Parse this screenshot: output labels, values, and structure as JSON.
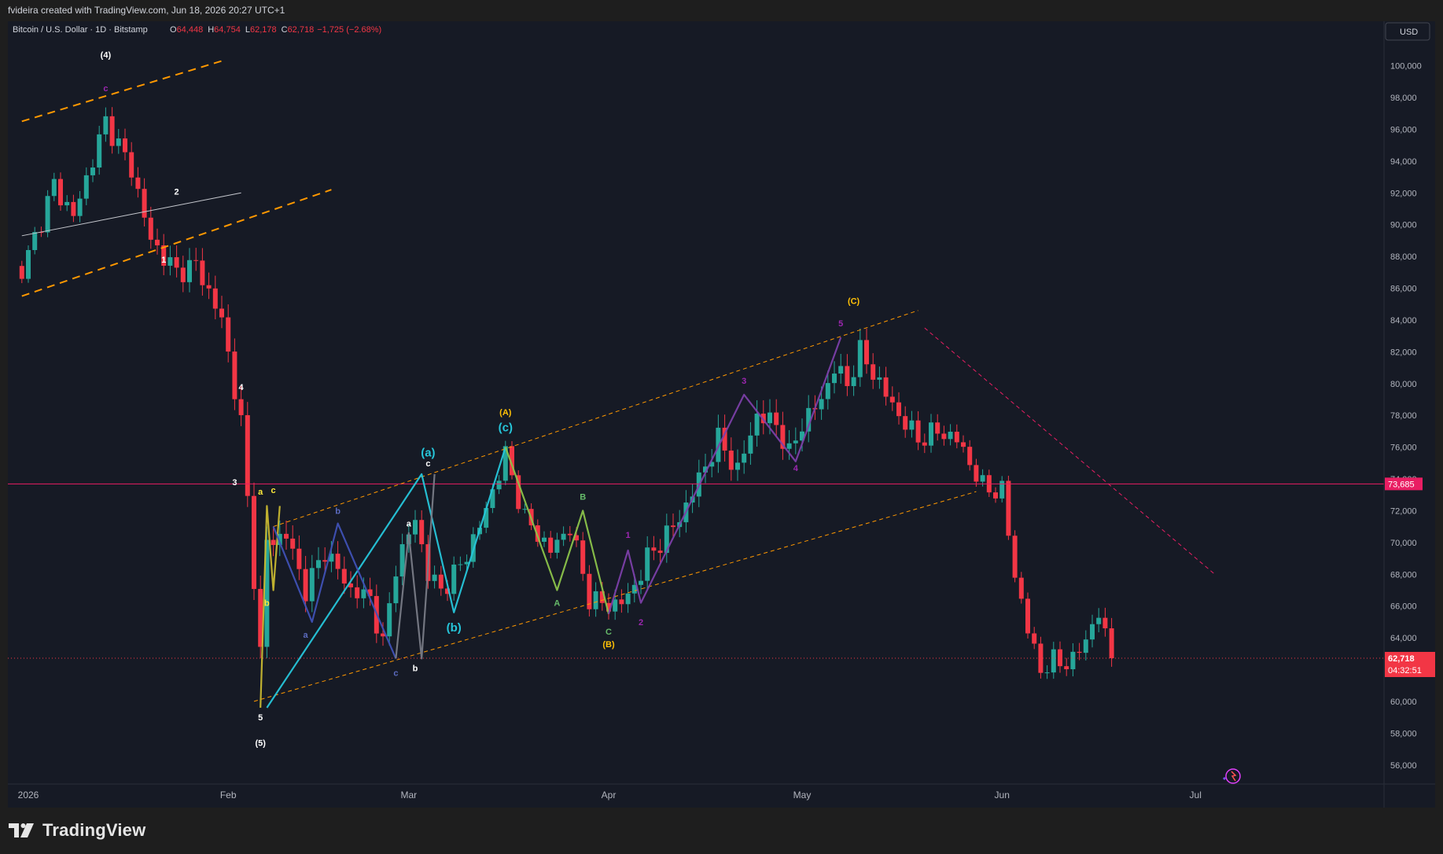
{
  "banner": "fvideira created with TradingView.com, Jun 18, 2026 20:27 UTC+1",
  "brand": "TradingView",
  "legend": {
    "symbol": "Bitcoin / U.S. Dollar · 1D · Bitstamp",
    "o_label": "O",
    "o": "64,448",
    "h_label": "H",
    "h": "64,754",
    "l_label": "L",
    "l": "62,178",
    "c_label": "C",
    "c": "62,718",
    "change": "−1,725 (−2.68%)"
  },
  "currency": "USD",
  "price_tag": {
    "value": "62,718",
    "countdown": "04:32:51"
  },
  "level_tag": "73,685",
  "colors": {
    "up": "#26a69a",
    "down": "#f23645",
    "bg": "#161a25",
    "level": "#e91e63",
    "channel": "#ff9800"
  },
  "chart_data": {
    "type": "candlestick",
    "title": "",
    "x_labels": [
      "2026",
      "Feb",
      "Mar",
      "Apr",
      "May",
      "Jun",
      "Jul"
    ],
    "x_label_dates": [
      "2026-01-01",
      "2026-02-01",
      "2026-03-01",
      "2026-04-01",
      "2026-05-01",
      "2026-06-01",
      "2026-07-01"
    ],
    "y_ticks": [
      56000,
      58000,
      60000,
      62000,
      64000,
      66000,
      68000,
      70000,
      72000,
      74000,
      76000,
      78000,
      80000,
      82000,
      84000,
      86000,
      88000,
      90000,
      92000,
      94000,
      96000,
      98000,
      100000
    ],
    "y_range": [
      54800,
      102800
    ],
    "horizontal_level": 73685,
    "last_price": 62718,
    "waypoints": [
      [
        "2025-12-31",
        87000
      ],
      [
        "2026-01-05",
        92500
      ],
      [
        "2026-01-08",
        90500
      ],
      [
        "2026-01-13",
        96500
      ],
      [
        "2026-01-17",
        93500
      ],
      [
        "2026-01-20",
        89000
      ],
      [
        "2026-01-24",
        87000
      ],
      [
        "2026-01-27",
        87500
      ],
      [
        "2026-01-31",
        84000
      ],
      [
        "2026-02-03",
        77500
      ],
      [
        "2026-02-06",
        63000
      ],
      [
        "2026-02-07",
        70000
      ],
      [
        "2026-02-10",
        70500
      ],
      [
        "2026-02-13",
        67000
      ],
      [
        "2026-02-16",
        69500
      ],
      [
        "2026-02-20",
        67000
      ],
      [
        "2026-02-23",
        66500
      ],
      [
        "2026-02-25",
        63500
      ],
      [
        "2026-02-27",
        68500
      ],
      [
        "2026-03-02",
        71500
      ],
      [
        "2026-03-04",
        68000
      ],
      [
        "2026-03-06",
        67000
      ],
      [
        "2026-03-09",
        68500
      ],
      [
        "2026-03-12",
        71000
      ],
      [
        "2026-03-16",
        75500
      ],
      [
        "2026-03-19",
        71500
      ],
      [
        "2026-03-23",
        69500
      ],
      [
        "2026-03-26",
        71000
      ],
      [
        "2026-03-29",
        66500
      ],
      [
        "2026-04-01",
        66000
      ],
      [
        "2026-04-04",
        66500
      ],
      [
        "2026-04-07",
        69000
      ],
      [
        "2026-04-12",
        71500
      ],
      [
        "2026-04-15",
        74000
      ],
      [
        "2026-04-18",
        76500
      ],
      [
        "2026-04-21",
        74500
      ],
      [
        "2026-04-24",
        78000
      ],
      [
        "2026-04-27",
        77500
      ],
      [
        "2026-04-29",
        75500
      ],
      [
        "2026-05-01",
        77500
      ],
      [
        "2026-05-04",
        79000
      ],
      [
        "2026-05-06",
        81000
      ],
      [
        "2026-05-08",
        80000
      ],
      [
        "2026-05-10",
        82000
      ],
      [
        "2026-05-13",
        80000
      ],
      [
        "2026-05-16",
        78000
      ],
      [
        "2026-05-19",
        76500
      ],
      [
        "2026-05-22",
        77000
      ],
      [
        "2026-05-25",
        76500
      ],
      [
        "2026-05-27",
        75000
      ],
      [
        "2026-05-29",
        73500
      ],
      [
        "2026-06-01",
        73200
      ],
      [
        "2026-06-03",
        68000
      ],
      [
        "2026-06-05",
        64500
      ],
      [
        "2026-06-07",
        62000
      ],
      [
        "2026-06-09",
        62500
      ],
      [
        "2026-06-12",
        62500
      ],
      [
        "2026-06-14",
        64000
      ],
      [
        "2026-06-16",
        65500
      ],
      [
        "2026-06-18",
        62718
      ]
    ],
    "trendlines": [
      {
        "style": "dash-orange-thick",
        "from": [
          "2025-12-31",
          96500
        ],
        "to": [
          "2026-01-31",
          100300
        ]
      },
      {
        "style": "dash-orange-thick",
        "from": [
          "2025-12-31",
          85500
        ],
        "to": [
          "2026-02-17",
          92200
        ]
      },
      {
        "style": "solid-white",
        "from": [
          "2025-12-31",
          89300
        ],
        "to": [
          "2026-02-03",
          92000
        ]
      },
      {
        "style": "dash-orange-thin",
        "from": [
          "2026-02-05",
          60000
        ],
        "to": [
          "2026-05-28",
          73200
        ]
      },
      {
        "style": "dash-orange-thin",
        "from": [
          "2026-02-08",
          71000
        ],
        "to": [
          "2026-05-19",
          84600
        ]
      },
      {
        "style": "dash-pink",
        "from": [
          "2026-05-20",
          83500
        ],
        "to": [
          "2026-07-04",
          68000
        ]
      }
    ],
    "wave_paths": [
      {
        "color": "#c8b830",
        "points": [
          [
            "2026-02-06",
            59600
          ],
          [
            "2026-02-07",
            72300
          ],
          [
            "2026-02-08",
            67000
          ],
          [
            "2026-02-09",
            72300
          ]
        ]
      },
      {
        "color": "#26c6da",
        "points": [
          [
            "2026-02-07",
            59600
          ],
          [
            "2026-03-03",
            74300
          ],
          [
            "2026-03-08",
            65600
          ],
          [
            "2026-03-16",
            76000
          ]
        ]
      },
      {
        "color": "#3f51b5",
        "points": [
          [
            "2026-02-08",
            71000
          ],
          [
            "2026-02-14",
            65000
          ],
          [
            "2026-02-18",
            71200
          ],
          [
            "2026-02-27",
            62700
          ]
        ]
      },
      {
        "color": "#787b86",
        "points": [
          [
            "2026-02-27",
            62700
          ],
          [
            "2026-03-01",
            70600
          ],
          [
            "2026-03-03",
            62700
          ],
          [
            "2026-03-05",
            74300
          ]
        ]
      },
      {
        "color": "#8bc34a",
        "points": [
          [
            "2026-03-16",
            76000
          ],
          [
            "2026-03-24",
            67000
          ],
          [
            "2026-03-28",
            72000
          ],
          [
            "2026-04-01",
            65500
          ]
        ]
      },
      {
        "color": "#7b3fa8",
        "points": [
          [
            "2026-04-01",
            65500
          ],
          [
            "2026-04-04",
            69500
          ],
          [
            "2026-04-06",
            66200
          ],
          [
            "2026-04-22",
            79300
          ],
          [
            "2026-04-30",
            75100
          ],
          [
            "2026-05-07",
            82900
          ]
        ]
      }
    ],
    "wave_labels": [
      [
        "(4)",
        "#ffffff",
        "2026-01-13",
        100500
      ],
      [
        "c",
        "#9c27b0",
        "2026-01-13",
        98400
      ],
      [
        "2",
        "#ffffff",
        "2026-01-24",
        91900
      ],
      [
        "1",
        "#ffffff",
        "2026-01-22",
        87600
      ],
      [
        "4",
        "#ffffff",
        "2026-02-03",
        79600
      ],
      [
        "3",
        "#ffffff",
        "2026-02-02",
        73600
      ],
      [
        "a",
        "#ffeb3b",
        "2026-02-06",
        73000
      ],
      [
        "c",
        "#ffeb3b",
        "2026-02-08",
        73100
      ],
      [
        "b",
        "#ffeb3b",
        "2026-02-07",
        66000
      ],
      [
        "5",
        "#ffffff",
        "2026-02-06",
        58800
      ],
      [
        "(5)",
        "#ffffff",
        "2026-02-06",
        57200
      ],
      [
        "b",
        "#5c6bc0",
        "2026-02-18",
        71800
      ],
      [
        "a",
        "#5c6bc0",
        "2026-02-13",
        64000
      ],
      [
        "c",
        "#5c6bc0",
        "2026-02-27",
        61600
      ],
      [
        "a",
        "#ffffff",
        "2026-02-29",
        71000
      ],
      [
        "b",
        "#ffffff",
        "2026-03-02",
        61900
      ],
      [
        "(a)",
        "#26c6da",
        "2026-03-04",
        75400
      ],
      [
        "c",
        "#ffffff",
        "2026-03-04",
        74800
      ],
      [
        "(b)",
        "#26c6da",
        "2026-03-08",
        64400
      ],
      [
        "(c)",
        "#26c6da",
        "2026-03-16",
        77000
      ],
      [
        "(A)",
        "#ffc107",
        "2026-03-16",
        78000
      ],
      [
        "B",
        "#66bb6a",
        "2026-03-28",
        72700
      ],
      [
        "A",
        "#66bb6a",
        "2026-03-24",
        66000
      ],
      [
        "C",
        "#66bb6a",
        "2026-04-01",
        64200
      ],
      [
        "(B)",
        "#ffc107",
        "2026-04-01",
        63400
      ],
      [
        "1",
        "#9c27b0",
        "2026-04-04",
        70300
      ],
      [
        "2",
        "#9c27b0",
        "2026-04-06",
        64800
      ],
      [
        "3",
        "#9c27b0",
        "2026-04-22",
        80000
      ],
      [
        "4",
        "#9c27b0",
        "2026-04-30",
        74500
      ],
      [
        "5",
        "#9c27b0",
        "2026-05-07",
        83600
      ],
      [
        "(C)",
        "#ffc107",
        "2026-05-09",
        85000
      ]
    ]
  }
}
